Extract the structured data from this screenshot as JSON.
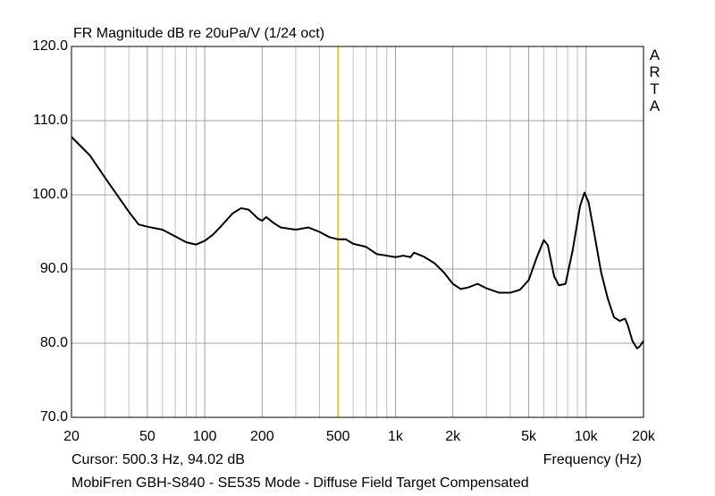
{
  "chart_data": {
    "type": "line",
    "title": "FR Magnitude dB re 20uPa/V (1/24 oct)",
    "watermark": "ARTA",
    "x_label": "Frequency (Hz)",
    "cursor_label": "Cursor: 500.3 Hz, 94.02 dB",
    "cursor_x": 500.3,
    "cursor_color": "#c8c800",
    "footer": "MobiFren GBH-S840 - SE535 Mode - Diffuse Field Target Compensated",
    "x_scale": "log",
    "grid": true,
    "xlim": [
      20,
      20000
    ],
    "ylim": [
      70,
      120
    ],
    "xticks": [
      20,
      50,
      100,
      200,
      500,
      {
        "value": 1000,
        "label": "1k"
      },
      {
        "value": 2000,
        "label": "2k"
      },
      {
        "value": 5000,
        "label": "5k"
      },
      {
        "value": 10000,
        "label": "10k"
      },
      {
        "value": 20000,
        "label": "20k"
      }
    ],
    "minor_xticks": [
      30,
      40,
      60,
      70,
      80,
      90,
      300,
      400,
      600,
      700,
      800,
      900,
      3000,
      4000,
      6000,
      7000,
      8000,
      9000
    ],
    "yticks": [
      {
        "value": 70,
        "label": "70.0"
      },
      {
        "value": 80,
        "label": "80.0"
      },
      {
        "value": 90,
        "label": "90.0"
      },
      {
        "value": 100,
        "label": "100.0"
      },
      {
        "value": 110,
        "label": "110.0"
      },
      {
        "value": 120,
        "label": "120.0"
      }
    ],
    "x": [
      20,
      25,
      30,
      40,
      45,
      50,
      60,
      70,
      80,
      90,
      100,
      110,
      120,
      140,
      155,
      170,
      190,
      200,
      210,
      230,
      250,
      300,
      350,
      400,
      450,
      500,
      550,
      600,
      700,
      800,
      900,
      1000,
      1100,
      1200,
      1250,
      1400,
      1600,
      1800,
      2000,
      2200,
      2400,
      2700,
      3000,
      3500,
      4000,
      4500,
      5000,
      5500,
      6000,
      6300,
      6800,
      7200,
      7800,
      8500,
      9300,
      9800,
      10300,
      11000,
      12000,
      13000,
      14000,
      15000,
      16000,
      16500,
      17500,
      18500,
      19000,
      20000
    ],
    "series": [
      {
        "name": "FR",
        "color": "#000000",
        "values": [
          107.8,
          105.3,
          102.3,
          97.7,
          96.0,
          95.7,
          95.3,
          94.4,
          93.6,
          93.3,
          93.8,
          94.6,
          95.6,
          97.5,
          98.2,
          98.0,
          96.8,
          96.5,
          97.0,
          96.2,
          95.6,
          95.3,
          95.6,
          95.0,
          94.3,
          94.0,
          94.0,
          93.4,
          93.0,
          92.0,
          91.8,
          91.6,
          91.8,
          91.6,
          92.2,
          91.7,
          90.8,
          89.5,
          88.0,
          87.3,
          87.5,
          88.0,
          87.4,
          86.8,
          86.8,
          87.2,
          88.5,
          91.5,
          93.9,
          93.2,
          89.0,
          87.8,
          88.0,
          92.5,
          98.5,
          100.3,
          99.0,
          95.0,
          89.5,
          86.0,
          83.5,
          83.0,
          83.3,
          82.5,
          80.3,
          79.3,
          79.5,
          80.3
        ]
      }
    ]
  }
}
